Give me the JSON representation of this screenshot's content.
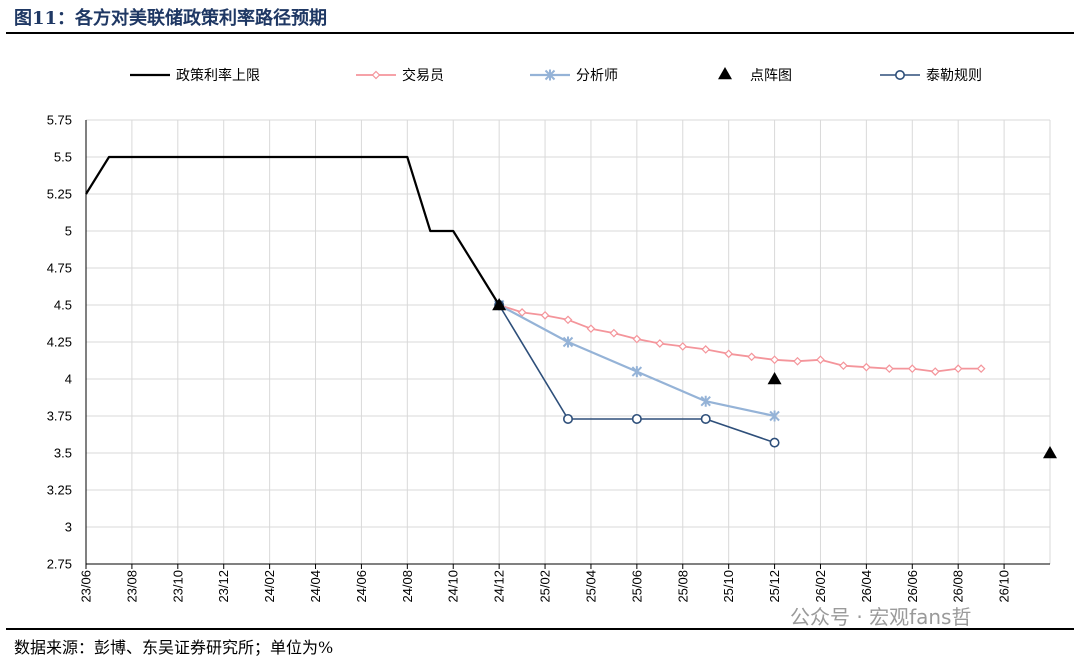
{
  "header": {
    "title": "图11：各方对美联储政策利率路径预期"
  },
  "footer": {
    "source": "数据来源：彭博、东吴证券研究所；单位为%"
  },
  "watermark": {
    "text": "公众号 · 宏观fans哲"
  },
  "colors": {
    "policy": "#000000",
    "traders": "#f4959b",
    "analysts": "#95b3d7",
    "dotplot": "#000000",
    "taylor": "#2e4f7a",
    "grid": "#d9d9d9"
  },
  "chart_data": {
    "type": "line",
    "x_axis": {
      "min": "2023-06",
      "max": "2026-12",
      "tick_labels": [
        "23/06",
        "23/08",
        "23/10",
        "23/12",
        "24/02",
        "24/04",
        "24/06",
        "24/08",
        "24/10",
        "24/12",
        "25/02",
        "25/04",
        "25/06",
        "25/08",
        "25/10",
        "25/12",
        "26/02",
        "26/04",
        "26/06",
        "26/08",
        "26/10"
      ],
      "tick_dates": [
        "2023-06",
        "2023-08",
        "2023-10",
        "2023-12",
        "2024-02",
        "2024-04",
        "2024-06",
        "2024-08",
        "2024-10",
        "2024-12",
        "2025-02",
        "2025-04",
        "2025-06",
        "2025-08",
        "2025-10",
        "2025-12",
        "2026-02",
        "2026-04",
        "2026-06",
        "2026-08",
        "2026-10"
      ]
    },
    "y_axis": {
      "min": 2.75,
      "max": 5.75,
      "ticks": [
        2.75,
        3,
        3.25,
        3.5,
        3.75,
        4,
        4.25,
        4.5,
        4.75,
        5,
        5.25,
        5.5,
        5.75
      ],
      "tick_labels": [
        "2.75",
        "3",
        "3.25",
        "3.5",
        "3.75",
        "4",
        "4.25",
        "4.5",
        "4.75",
        "5",
        "5.25",
        "5.5",
        "5.75"
      ]
    },
    "grid": true,
    "legend_position": "top",
    "series": [
      {
        "key": "policy",
        "name": "政策利率上限",
        "style": "line",
        "points": [
          [
            "2023-06",
            5.25
          ],
          [
            "2023-07",
            5.5
          ],
          [
            "2023-08",
            5.5
          ],
          [
            "2023-09",
            5.5
          ],
          [
            "2023-10",
            5.5
          ],
          [
            "2023-11",
            5.5
          ],
          [
            "2023-12",
            5.5
          ],
          [
            "2024-01",
            5.5
          ],
          [
            "2024-02",
            5.5
          ],
          [
            "2024-03",
            5.5
          ],
          [
            "2024-04",
            5.5
          ],
          [
            "2024-05",
            5.5
          ],
          [
            "2024-06",
            5.5
          ],
          [
            "2024-07",
            5.5
          ],
          [
            "2024-08",
            5.5
          ],
          [
            "2024-09",
            5.0
          ],
          [
            "2024-10",
            5.0
          ],
          [
            "2024-11",
            4.75
          ],
          [
            "2024-12",
            4.5
          ]
        ]
      },
      {
        "key": "traders",
        "name": "交易员",
        "style": "line-diamond",
        "points": [
          [
            "2024-12",
            4.5
          ],
          [
            "2025-01",
            4.45
          ],
          [
            "2025-02",
            4.43
          ],
          [
            "2025-03",
            4.4
          ],
          [
            "2025-04",
            4.34
          ],
          [
            "2025-05",
            4.31
          ],
          [
            "2025-06",
            4.27
          ],
          [
            "2025-07",
            4.24
          ],
          [
            "2025-08",
            4.22
          ],
          [
            "2025-09",
            4.2
          ],
          [
            "2025-10",
            4.17
          ],
          [
            "2025-11",
            4.15
          ],
          [
            "2025-12",
            4.13
          ],
          [
            "2026-01",
            4.12
          ],
          [
            "2026-02",
            4.13
          ],
          [
            "2026-03",
            4.09
          ],
          [
            "2026-04",
            4.08
          ],
          [
            "2026-05",
            4.07
          ],
          [
            "2026-06",
            4.07
          ],
          [
            "2026-07",
            4.05
          ],
          [
            "2026-08",
            4.07
          ],
          [
            "2026-09",
            4.07
          ]
        ]
      },
      {
        "key": "analysts",
        "name": "分析师",
        "style": "line-star",
        "points": [
          [
            "2024-12",
            4.5
          ],
          [
            "2025-03",
            4.25
          ],
          [
            "2025-06",
            4.05
          ],
          [
            "2025-09",
            3.85
          ],
          [
            "2025-12",
            3.75
          ]
        ]
      },
      {
        "key": "dotplot",
        "name": "点阵图",
        "style": "triangle",
        "points": [
          [
            "2024-12",
            4.5
          ],
          [
            "2025-12",
            4.0
          ],
          [
            "2026-12",
            3.5
          ]
        ]
      },
      {
        "key": "taylor",
        "name": "泰勒规则",
        "style": "line-circle",
        "points": [
          [
            "2024-12",
            4.5
          ],
          [
            "2025-03",
            3.73
          ],
          [
            "2025-06",
            3.73
          ],
          [
            "2025-09",
            3.73
          ],
          [
            "2025-12",
            3.57
          ]
        ]
      }
    ]
  }
}
